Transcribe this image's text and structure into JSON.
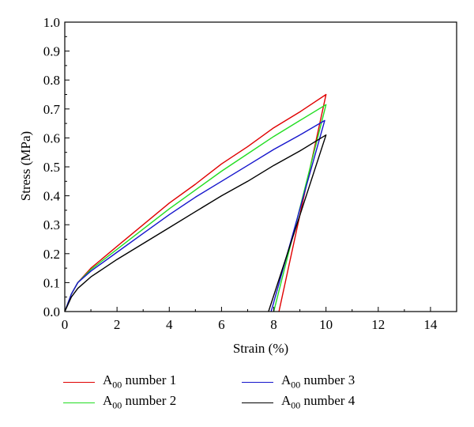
{
  "chart_data": {
    "type": "line",
    "title": "",
    "xlabel": "Strain (%)",
    "ylabel": "Stress (MPa)",
    "xlim": [
      0,
      15
    ],
    "ylim": [
      0,
      1.0
    ],
    "xticks": [
      0,
      2,
      4,
      6,
      8,
      10,
      12,
      14
    ],
    "yticks": [
      0.0,
      0.1,
      0.2,
      0.3,
      0.4,
      0.5,
      0.6,
      0.7,
      0.8,
      0.9,
      1.0
    ],
    "xtick_labels": [
      "0",
      "2",
      "4",
      "6",
      "8",
      "10",
      "12",
      "14"
    ],
    "ytick_labels": [
      "0.0",
      "0.1",
      "0.2",
      "0.3",
      "0.4",
      "0.5",
      "0.6",
      "0.7",
      "0.8",
      "0.9",
      "1.0"
    ],
    "grid": false,
    "legend_position": "bottom",
    "series": [
      {
        "name": "number 1",
        "color": "#e00000",
        "x": [
          0,
          0.25,
          0.5,
          1,
          2,
          3,
          4,
          5,
          6,
          7,
          8,
          9,
          10,
          8.2
        ],
        "y": [
          0,
          0.06,
          0.1,
          0.15,
          0.225,
          0.3,
          0.375,
          0.44,
          0.51,
          0.57,
          0.635,
          0.69,
          0.75,
          0
        ]
      },
      {
        "name": "number 2",
        "color": "#22dd22",
        "x": [
          0,
          0.25,
          0.5,
          1,
          2,
          3,
          4,
          5,
          6,
          7,
          8,
          9,
          10,
          8.0
        ],
        "y": [
          0,
          0.06,
          0.1,
          0.145,
          0.215,
          0.285,
          0.355,
          0.42,
          0.485,
          0.545,
          0.605,
          0.66,
          0.715,
          0
        ]
      },
      {
        "name": "number 3",
        "color": "#1515cc",
        "x": [
          0,
          0.25,
          0.5,
          1,
          2,
          3,
          4,
          5,
          6,
          7,
          8,
          9,
          9.95,
          7.9
        ],
        "y": [
          0,
          0.06,
          0.1,
          0.14,
          0.205,
          0.27,
          0.335,
          0.395,
          0.45,
          0.505,
          0.56,
          0.61,
          0.66,
          0
        ]
      },
      {
        "name": "number 4",
        "color": "#000000",
        "x": [
          0,
          0.25,
          0.5,
          1,
          2,
          3,
          4,
          5,
          6,
          7,
          8,
          9,
          10,
          7.8
        ],
        "y": [
          0,
          0.05,
          0.08,
          0.12,
          0.18,
          0.235,
          0.29,
          0.345,
          0.4,
          0.45,
          0.505,
          0.555,
          0.61,
          0
        ]
      }
    ]
  },
  "legend": {
    "prefix": "A",
    "subscript": "00",
    "items": [
      {
        "label": "number 1",
        "color": "#e00000"
      },
      {
        "label": "number 2",
        "color": "#22dd22"
      },
      {
        "label": "number 3",
        "color": "#1515cc"
      },
      {
        "label": "number 4",
        "color": "#000000"
      }
    ]
  }
}
